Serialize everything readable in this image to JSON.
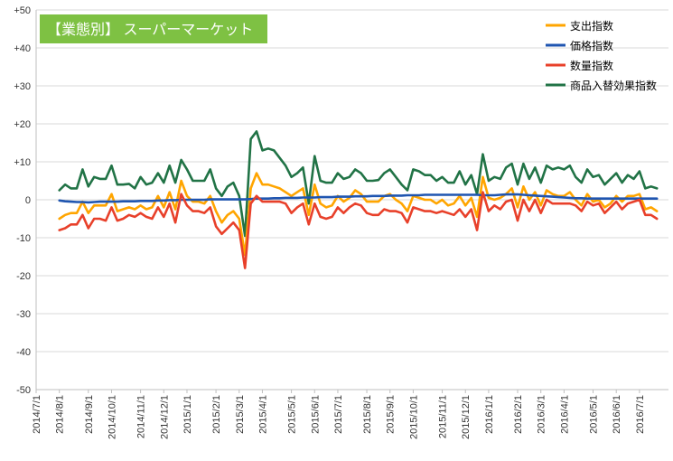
{
  "chart_data": {
    "type": "line",
    "badge": "【業態別】 スーパーマーケット",
    "ylim": [
      -50,
      50
    ],
    "yticks": [
      {
        "v": 50,
        "label": "+50"
      },
      {
        "v": 40,
        "label": "+40"
      },
      {
        "v": 30,
        "label": "+30"
      },
      {
        "v": 20,
        "label": "+20"
      },
      {
        "v": 10,
        "label": "+10"
      },
      {
        "v": 0,
        "label": "0"
      },
      {
        "v": -10,
        "label": "-10"
      },
      {
        "v": -20,
        "label": "-20"
      },
      {
        "v": -30,
        "label": "-30"
      },
      {
        "v": -40,
        "label": "-40"
      },
      {
        "v": -50,
        "label": "-50"
      }
    ],
    "xticks": [
      {
        "week": 0,
        "label": "2014/7/1"
      },
      {
        "week": 4,
        "label": "2014/8/1"
      },
      {
        "week": 9,
        "label": "2014/9/1"
      },
      {
        "week": 13,
        "label": "2014/10/1"
      },
      {
        "week": 18,
        "label": "2014/11/1"
      },
      {
        "week": 22,
        "label": "2014/12/1"
      },
      {
        "week": 26,
        "label": "2015/1/1"
      },
      {
        "week": 31,
        "label": "2015/2/1"
      },
      {
        "week": 35,
        "label": "2015/3/1"
      },
      {
        "week": 39,
        "label": "2015/4/1"
      },
      {
        "week": 44,
        "label": "2015/5/1"
      },
      {
        "week": 48,
        "label": "2015/6/1"
      },
      {
        "week": 52,
        "label": "2015/7/1"
      },
      {
        "week": 57,
        "label": "2015/8/1"
      },
      {
        "week": 61,
        "label": "2015/9/1"
      },
      {
        "week": 65,
        "label": "2015/10/1"
      },
      {
        "week": 70,
        "label": "2015/11/1"
      },
      {
        "week": 74,
        "label": "2015/12/1"
      },
      {
        "week": 78,
        "label": "2016/1/1"
      },
      {
        "week": 83,
        "label": "2016/2/1"
      },
      {
        "week": 87,
        "label": "2016/3/1"
      },
      {
        "week": 91,
        "label": "2016/4/1"
      },
      {
        "week": 96,
        "label": "2016/5/1"
      },
      {
        "week": 100,
        "label": "2016/6/1"
      },
      {
        "week": 104,
        "label": "2016/7/1"
      }
    ],
    "x_weeks_total": 109,
    "first_point_week": 4,
    "series": [
      {
        "name": "商品入替効果指数",
        "color": "#217346",
        "values": [
          2.5,
          4,
          3,
          3,
          8,
          3.5,
          6,
          5.5,
          5.5,
          9,
          4,
          4,
          4.2,
          3,
          6,
          4,
          4.5,
          7,
          4.5,
          9,
          4.5,
          10.5,
          8,
          5,
          5,
          5,
          8,
          3,
          1,
          3.5,
          4.5,
          1,
          -9.5,
          16,
          18,
          13,
          13.5,
          13,
          11,
          9,
          6,
          7,
          8.5,
          -1,
          11.5,
          5,
          4.5,
          4.5,
          7,
          5.5,
          6,
          8,
          7,
          5,
          5,
          5.2,
          7,
          8,
          6,
          4,
          2.5,
          8,
          7.5,
          6.5,
          6.5,
          5,
          6,
          4.5,
          4.5,
          7.5,
          4,
          6.5,
          1.5,
          12,
          5,
          6,
          5.5,
          8.5,
          9.5,
          4,
          9.5,
          5.5,
          8.5,
          4.5,
          9,
          8,
          8.5,
          8,
          9,
          6,
          4.5,
          8,
          6,
          6.5,
          4,
          5.5,
          7,
          4.5,
          6.5,
          5.5,
          7.5,
          3,
          3.5,
          3
        ]
      },
      {
        "name": "支出指数",
        "color": "#FFA500",
        "values": [
          -5,
          -4,
          -3.5,
          -3.5,
          -0.5,
          -3.5,
          -1.5,
          -1.5,
          -1.5,
          1.5,
          -3,
          -2.5,
          -2,
          -2.5,
          -1.5,
          -2.5,
          -2,
          1,
          -2,
          2,
          -2.5,
          5,
          1,
          -0.5,
          -0.5,
          -1,
          1,
          -3,
          -6,
          -4,
          -3,
          -5,
          -14.5,
          3,
          7,
          4,
          4,
          3.5,
          3,
          2,
          1,
          2,
          3,
          -4,
          4,
          -1,
          -2,
          -1.5,
          1,
          -0.5,
          0.5,
          2.5,
          1.5,
          -0.5,
          -0.5,
          -0.5,
          1,
          1.5,
          0,
          -1,
          -3,
          1,
          0.5,
          0,
          0,
          -1,
          0,
          -1.5,
          -1,
          1,
          -1.5,
          0.5,
          -4.5,
          6,
          0.5,
          0,
          0.5,
          1.5,
          3,
          -2,
          3.5,
          0,
          2,
          -1.5,
          2.5,
          1.5,
          1,
          1,
          2,
          0,
          -1.5,
          1.5,
          -0.5,
          0,
          -2,
          -1,
          1,
          -0.5,
          1,
          1,
          1.5,
          -2.5,
          -2,
          -3
        ]
      },
      {
        "name": "価格指数",
        "color": "#1F55B0",
        "values": [
          -0.2,
          -0.4,
          -0.5,
          -0.6,
          -0.6,
          -0.7,
          -0.6,
          -0.5,
          -0.5,
          -0.5,
          -0.5,
          -0.4,
          -0.4,
          -0.4,
          -0.3,
          -0.3,
          -0.3,
          -0.2,
          -0.2,
          -0.1,
          -0.1,
          0,
          0,
          0,
          0,
          0,
          0.1,
          0.1,
          0.1,
          0.1,
          0.1,
          0.1,
          0.1,
          0.2,
          0.3,
          0.3,
          0.3,
          0.4,
          0.4,
          0.5,
          0.5,
          0.5,
          0.6,
          0.6,
          0.6,
          0.7,
          0.7,
          0.7,
          0.8,
          0.8,
          0.8,
          0.9,
          0.9,
          0.9,
          1,
          1,
          1,
          1.1,
          1.1,
          1.1,
          1.2,
          1.2,
          1.2,
          1.3,
          1.3,
          1.3,
          1.3,
          1.3,
          1.3,
          1.3,
          1.3,
          1.3,
          1.3,
          1.2,
          1.2,
          1.2,
          1.3,
          1.4,
          1.4,
          1.4,
          1.3,
          1.2,
          1.1,
          1,
          0.9,
          0.8,
          0.7,
          0.6,
          0.5,
          0.4,
          0.4,
          0.3,
          0.3,
          0.3,
          0.3,
          0.3,
          0.3,
          0.3,
          0.3,
          0.3,
          0.3,
          0.3,
          0.3,
          0.3
        ]
      },
      {
        "name": "数量指数",
        "color": "#E8402A",
        "values": [
          -8,
          -7.5,
          -6.5,
          -6.5,
          -4,
          -7.5,
          -5,
          -5,
          -5.5,
          -2,
          -5.5,
          -5,
          -4,
          -4.5,
          -3.5,
          -4.5,
          -5,
          -2,
          -4.5,
          -1,
          -6,
          1.5,
          -1.5,
          -3,
          -3,
          -3.5,
          -2,
          -7,
          -9,
          -7.5,
          -6,
          -8,
          -18,
          -1,
          1,
          -0.5,
          -0.5,
          -0.5,
          -0.5,
          -1,
          -3.5,
          -2,
          -1,
          -6.5,
          -1,
          -4.5,
          -5,
          -4.5,
          -2,
          -3.5,
          -2,
          -1,
          -1.5,
          -3.5,
          -4,
          -4,
          -2.5,
          -3,
          -3,
          -3.5,
          -6,
          -2,
          -2.5,
          -3,
          -3,
          -3.5,
          -3,
          -3.5,
          -4,
          -2.5,
          -4.5,
          -2.5,
          -8,
          2,
          -3,
          -1.5,
          -2.5,
          -0.5,
          0,
          -5.5,
          0,
          -3,
          0,
          -3.5,
          0,
          -1,
          -1,
          -1,
          -1,
          -1.5,
          -3,
          -0.5,
          -1.5,
          -1,
          -3.5,
          -2,
          -0.5,
          -2.5,
          -1,
          -0.5,
          0,
          -4,
          -4,
          -5
        ]
      }
    ]
  }
}
